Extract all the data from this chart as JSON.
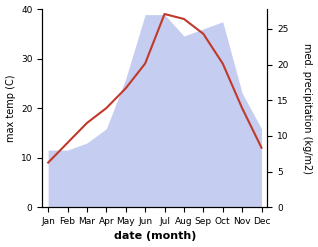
{
  "months": [
    "Jan",
    "Feb",
    "Mar",
    "Apr",
    "May",
    "Jun",
    "Jul",
    "Aug",
    "Sep",
    "Oct",
    "Nov",
    "Dec"
  ],
  "max_temp": [
    9,
    13,
    17,
    20,
    24,
    29,
    39,
    38,
    35,
    29,
    20,
    12
  ],
  "precipitation": [
    8,
    8,
    9,
    11,
    18,
    27,
    27,
    24,
    25,
    26,
    16,
    11
  ],
  "temp_color": "#c0392b",
  "precip_fill_color": "#c5cef0",
  "left_ylim": [
    0,
    40
  ],
  "right_ylim": [
    0,
    27.78
  ],
  "right_yticks": [
    0,
    5,
    10,
    15,
    20,
    25
  ],
  "left_yticks": [
    0,
    10,
    20,
    30,
    40
  ],
  "xlabel": "date (month)",
  "ylabel_left": "max temp (C)",
  "ylabel_right": "med. precipitation (kg/m2)",
  "axis_fontsize": 7,
  "tick_fontsize": 6.5,
  "xlabel_fontsize": 8,
  "line_width": 1.5,
  "background_color": "#ffffff"
}
